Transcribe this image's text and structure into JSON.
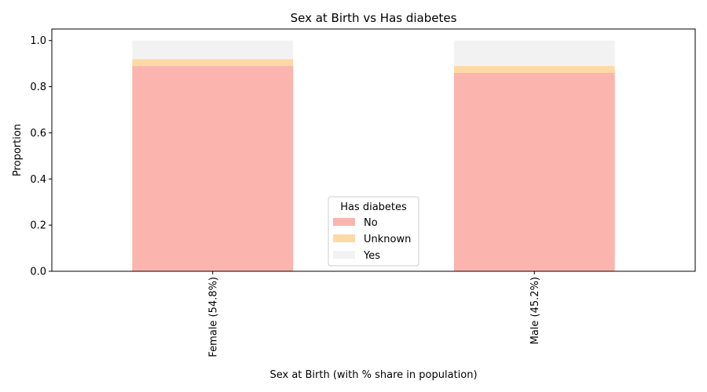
{
  "chart_data": {
    "type": "bar",
    "stacked": true,
    "title": "Sex at Birth vs Has diabetes",
    "xlabel": "Sex at Birth (with % share in population)",
    "ylabel": "Proportion",
    "ylim": [
      0,
      1.05
    ],
    "yticks": [
      "0.0",
      "0.2",
      "0.4",
      "0.6",
      "0.8",
      "1.0"
    ],
    "categories": [
      "Female (54.8%)",
      "Male (45.2%)"
    ],
    "series": [
      {
        "name": "No",
        "color": "#fbb4ae",
        "values": [
          0.89,
          0.86
        ]
      },
      {
        "name": "Unknown",
        "color": "#fed9a6",
        "values": [
          0.03,
          0.03
        ]
      },
      {
        "name": "Yes",
        "color": "#f2f2f2",
        "values": [
          0.08,
          0.11
        ]
      }
    ],
    "legend": {
      "title": "Has diabetes",
      "position": "bottom-center"
    },
    "grid": false
  }
}
